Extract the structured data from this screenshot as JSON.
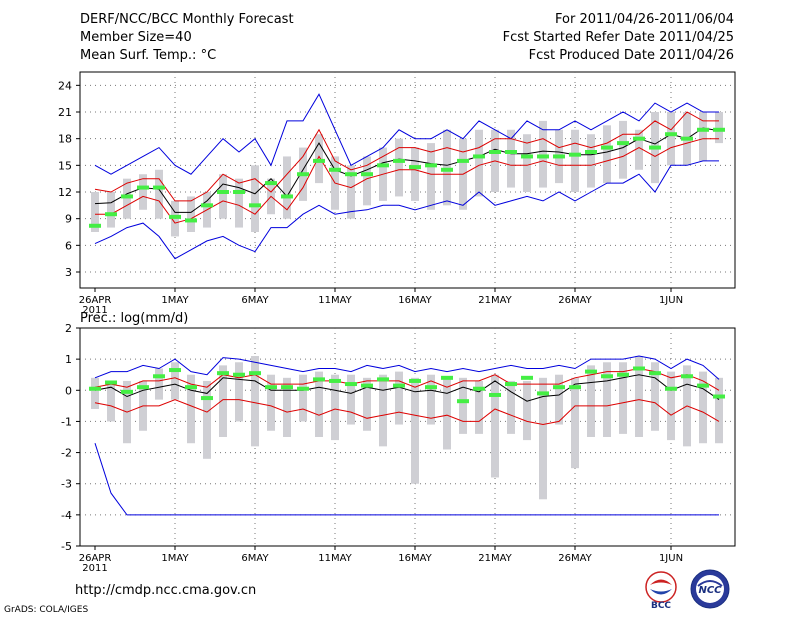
{
  "header": {
    "title": "DERF/NCC/BCC Monthly Forecast",
    "member_size": "Member Size=40",
    "variable": "Mean Surf. Temp.: °C",
    "period": "For 2011/04/26-2011/06/04",
    "refer_date": "Fcst Started Refer Date 2011/04/25",
    "produced_date": "Fcst Produced Date 2011/04/26"
  },
  "footer": {
    "url": "http://cmdp.ncc.cma.gov.cn",
    "credit": "GrADS: COLA/IGES",
    "logo_left_text": "BCC",
    "logo_right_text": "NCC"
  },
  "colors": {
    "max_min": "#0000dd",
    "spread": "#dd0000",
    "mean": "#000000",
    "observed": "#44ee44",
    "box": "#cfcfd4"
  },
  "chart_data": [
    {
      "type": "line",
      "title": "Mean Surf. Temp.: °C",
      "x_tick_labels": [
        "26APR",
        "1MAY",
        "6MAY",
        "11MAY",
        "16MAY",
        "21MAY",
        "26MAY",
        "1JUN"
      ],
      "x_tick_days": [
        1,
        6,
        11,
        16,
        21,
        26,
        31,
        37
      ],
      "x_year_label": "2011",
      "ylim": [
        1.2,
        25.5
      ],
      "y_ticks": [
        3,
        6,
        9,
        12,
        15,
        18,
        21,
        24
      ],
      "days": [
        1,
        2,
        3,
        4,
        5,
        6,
        7,
        8,
        9,
        10,
        11,
        12,
        13,
        14,
        15,
        16,
        17,
        18,
        19,
        20,
        21,
        22,
        23,
        24,
        25,
        26,
        27,
        28,
        29,
        30,
        31,
        32,
        33,
        34,
        35,
        36,
        37,
        38,
        39,
        40
      ],
      "series": [
        {
          "name": "max",
          "values": [
            15,
            14,
            15,
            16,
            17,
            15,
            14,
            16,
            18,
            16.5,
            18,
            15,
            20,
            20,
            23,
            19,
            15,
            16,
            17,
            19,
            18,
            18,
            19,
            18,
            20,
            19,
            18,
            20,
            19,
            19,
            20,
            19,
            20,
            21,
            20,
            22,
            21,
            22,
            21,
            21
          ]
        },
        {
          "name": "upper",
          "values": [
            12.3,
            12,
            13,
            13.5,
            13.5,
            11,
            11,
            12,
            14,
            13,
            13.5,
            12,
            14,
            16,
            19,
            15.5,
            14.5,
            15,
            16,
            17,
            17,
            16.5,
            17,
            16.5,
            17,
            18,
            18,
            17.5,
            18,
            17,
            17.5,
            17,
            17.5,
            18.5,
            18.5,
            20,
            19,
            21,
            20,
            20
          ]
        },
        {
          "name": "mean",
          "values": [
            10.7,
            10.8,
            11.8,
            12.5,
            12.3,
            9.7,
            9.7,
            11,
            12.9,
            12.5,
            11.8,
            13.5,
            11.5,
            14.5,
            17.5,
            14.5,
            13.8,
            14.5,
            15.3,
            15.7,
            15.5,
            15.2,
            15,
            15.5,
            16,
            16.8,
            16.3,
            16.3,
            16.6,
            16.5,
            16.2,
            16.2,
            16.5,
            17,
            18,
            17.4,
            18.5,
            18,
            19.2,
            18.9
          ]
        },
        {
          "name": "lower",
          "values": [
            9.5,
            9.5,
            10.5,
            11.5,
            11,
            8.5,
            9,
            10,
            11,
            10.5,
            9.5,
            11.5,
            10,
            12.5,
            16,
            13,
            12.5,
            13.5,
            14,
            14.5,
            14.5,
            14,
            14,
            14,
            15,
            15.5,
            15,
            15,
            15.5,
            15,
            15,
            15,
            15.5,
            16,
            17,
            16,
            17,
            17.5,
            18,
            18
          ]
        },
        {
          "name": "min",
          "values": [
            6.2,
            7,
            8,
            8.5,
            7,
            4.5,
            5.5,
            6.5,
            7,
            6,
            5.3,
            8,
            8,
            9.5,
            10.5,
            9.5,
            9.8,
            10,
            10.5,
            10.5,
            10,
            10.5,
            11,
            10.5,
            12,
            10.5,
            11,
            11.5,
            11,
            12,
            11,
            12,
            13,
            13,
            14,
            12,
            15,
            15,
            15.5,
            15.5
          ]
        },
        {
          "name": "observed",
          "values": [
            8.2,
            9.5,
            11.5,
            12.5,
            12.5,
            9.2,
            8.8,
            10.5,
            12,
            12,
            10.5,
            13,
            11.5,
            14,
            15.5,
            14.5,
            14,
            14,
            15,
            15.5,
            14.8,
            15,
            14.5,
            15.5,
            16,
            16.5,
            16.5,
            16,
            16,
            16,
            16.2,
            16.5,
            17,
            17.5,
            18,
            17,
            18.5,
            18,
            19,
            19
          ]
        },
        {
          "name": "box_top",
          "values": [
            12,
            12,
            13.5,
            14,
            14.5,
            11,
            11.5,
            12,
            14,
            13.5,
            15,
            13.5,
            16,
            17,
            18.5,
            16,
            15,
            16,
            17,
            18,
            17,
            17.5,
            19,
            18,
            19,
            19,
            19,
            18.5,
            20,
            19,
            19,
            18.5,
            19.5,
            20,
            19,
            21,
            21,
            21,
            21,
            21
          ]
        },
        {
          "name": "box_bottom",
          "values": [
            7.5,
            8,
            9,
            10,
            9,
            7,
            7.5,
            8,
            9,
            8,
            7.5,
            9.5,
            9,
            11,
            13,
            10,
            9,
            10.5,
            11,
            11.5,
            11,
            10,
            10.5,
            10,
            11.5,
            12,
            12.5,
            12,
            12.5,
            13,
            12,
            12.5,
            13,
            13.5,
            14.5,
            13,
            15,
            15,
            15.5,
            17.5
          ]
        }
      ]
    },
    {
      "type": "line",
      "title": "Prec.: log(mm/d)",
      "x_tick_labels": [
        "26APR",
        "1MAY",
        "6MAY",
        "11MAY",
        "16MAY",
        "21MAY",
        "26MAY",
        "1JUN"
      ],
      "x_tick_days": [
        1,
        6,
        11,
        16,
        21,
        26,
        31,
        37
      ],
      "x_year_label": "2011",
      "ylim": [
        -5,
        2
      ],
      "y_ticks": [
        -5,
        -4,
        -3,
        -2,
        -1,
        0,
        1,
        2
      ],
      "days": [
        1,
        2,
        3,
        4,
        5,
        6,
        7,
        8,
        9,
        10,
        11,
        12,
        13,
        14,
        15,
        16,
        17,
        18,
        19,
        20,
        21,
        22,
        23,
        24,
        25,
        26,
        27,
        28,
        29,
        30,
        31,
        32,
        33,
        34,
        35,
        36,
        37,
        38,
        39,
        40
      ],
      "series": [
        {
          "name": "max",
          "values": [
            0.4,
            0.6,
            0.6,
            0.8,
            0.7,
            1,
            0.6,
            0.5,
            1.05,
            1,
            0.9,
            0.8,
            0.7,
            0.6,
            0.7,
            0.7,
            0.6,
            0.8,
            0.7,
            0.8,
            0.6,
            0.7,
            0.6,
            0.7,
            0.6,
            0.7,
            0.8,
            0.7,
            0.7,
            0.8,
            0.7,
            1,
            1,
            1,
            1.1,
            1,
            0.7,
            1,
            0.8,
            0.35
          ]
        },
        {
          "name": "upper",
          "values": [
            0.1,
            0.2,
            0.1,
            0.3,
            0.3,
            0.4,
            0.2,
            0.1,
            0.5,
            0.4,
            0.5,
            0.2,
            0.2,
            0.2,
            0.3,
            0.3,
            0.2,
            0.3,
            0.3,
            0.3,
            0.1,
            0.3,
            0.1,
            0.3,
            0.3,
            0.5,
            0.2,
            0.2,
            0.2,
            0.2,
            0.4,
            0.5,
            0.6,
            0.6,
            0.7,
            0.6,
            0.4,
            0.5,
            0.3,
            0
          ]
        },
        {
          "name": "mean",
          "values": [
            0,
            0.1,
            -0.2,
            0,
            0.1,
            0.2,
            0,
            -0.1,
            0.4,
            0.35,
            0.3,
            0,
            0,
            0,
            0.1,
            0,
            -0.1,
            0.1,
            0,
            0.1,
            -0.05,
            0,
            -0.1,
            0.1,
            -0.05,
            0.3,
            -0.05,
            -0.35,
            -0.2,
            -0.15,
            0.2,
            0.25,
            0.3,
            0.4,
            0.5,
            0.4,
            0,
            0.2,
            0.05,
            -0.3
          ]
        },
        {
          "name": "lower",
          "values": [
            -0.4,
            -0.5,
            -0.7,
            -0.5,
            -0.5,
            -0.3,
            -0.5,
            -0.7,
            -0.3,
            -0.3,
            -0.4,
            -0.5,
            -0.7,
            -0.6,
            -0.8,
            -0.6,
            -0.7,
            -0.9,
            -0.8,
            -0.7,
            -0.8,
            -0.9,
            -0.8,
            -1,
            -1,
            -0.6,
            -0.8,
            -1,
            -1.1,
            -1,
            -0.5,
            -0.5,
            -0.5,
            -0.4,
            -0.3,
            -0.4,
            -0.8,
            -0.5,
            -0.7,
            -1
          ]
        },
        {
          "name": "min",
          "values": [
            -1.7,
            -3.3,
            -4,
            -4,
            -4,
            -4,
            -4,
            -4,
            -4,
            -4,
            -4,
            -4,
            -4,
            -4,
            -4,
            -4,
            -4,
            -4,
            -4,
            -4,
            -4,
            -4,
            -4,
            -4,
            -4,
            -4,
            -4,
            -4,
            -4,
            -4,
            -4,
            -4,
            -4,
            -4,
            -4,
            -4,
            -4,
            -4,
            -4,
            -4
          ]
        },
        {
          "name": "observed",
          "values": [
            0.05,
            0.25,
            -0.05,
            0.1,
            0.45,
            0.65,
            0.1,
            -0.25,
            0.55,
            0.5,
            0.55,
            0.1,
            0.1,
            0.05,
            0.35,
            0.3,
            0.2,
            0.15,
            0.35,
            0.15,
            0.3,
            0.1,
            0.4,
            -0.35,
            0.05,
            -0.15,
            0.2,
            0.4,
            -0.1,
            0.1,
            0.1,
            0.6,
            0.45,
            0.5,
            0.7,
            0.55,
            0.05,
            0.45,
            0.15,
            -0.2
          ]
        },
        {
          "name": "box_top",
          "values": [
            0.4,
            0.3,
            0.3,
            0.3,
            0.7,
            0.9,
            0.5,
            0.3,
            0.8,
            0.9,
            1.1,
            0.5,
            0.4,
            0.5,
            0.6,
            0.5,
            0.5,
            0.4,
            0.5,
            0.6,
            0.4,
            0.5,
            0.4,
            0.4,
            0.3,
            0.5,
            0.3,
            0.3,
            0.4,
            0.5,
            0.4,
            0.8,
            0.9,
            0.9,
            1.1,
            0.9,
            0.6,
            0.8,
            0.6,
            0.4
          ]
        },
        {
          "name": "box_bottom",
          "values": [
            -0.6,
            -1,
            -1.7,
            -1.3,
            -0.3,
            -0.3,
            -1.7,
            -2.2,
            -1.5,
            -1,
            -1.8,
            -1.3,
            -1.5,
            -1,
            -1.5,
            -1.6,
            -1.1,
            -1.3,
            -1.8,
            -1.1,
            -3,
            -1.1,
            -1.9,
            -1.4,
            -1.4,
            -2.8,
            -1.4,
            -1.6,
            -3.5,
            -1.1,
            -2.5,
            -1.5,
            -1.5,
            -1.4,
            -1.5,
            -1.3,
            -1.6,
            -1.8,
            -1.7,
            -1.7
          ]
        }
      ]
    }
  ]
}
